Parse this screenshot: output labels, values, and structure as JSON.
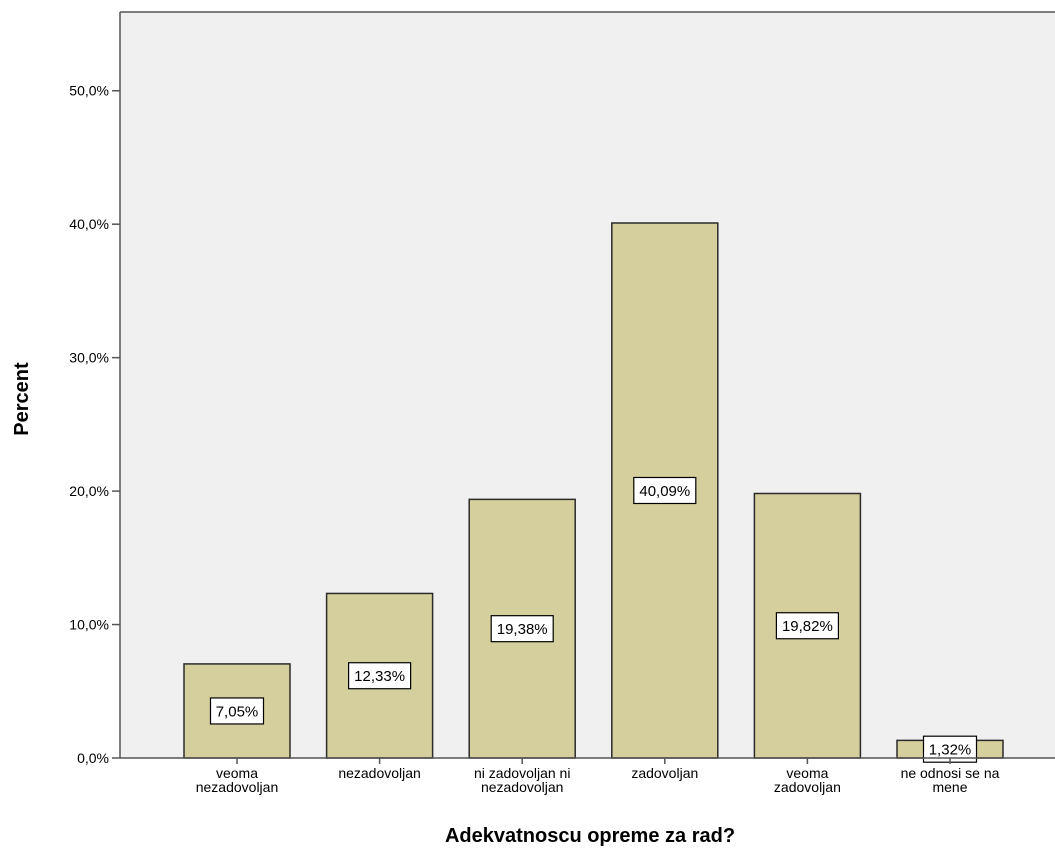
{
  "chart_data": {
    "type": "bar",
    "categories": [
      [
        "veoma",
        "nezadovoljan"
      ],
      [
        "nezadovoljan"
      ],
      [
        "ni zadovoljan ni",
        "nezadovoljan"
      ],
      [
        "zadovoljan"
      ],
      [
        "veoma",
        "zadovoljan"
      ],
      [
        "ne odnosi se na",
        "mene"
      ]
    ],
    "values": [
      7.05,
      12.33,
      19.38,
      40.09,
      19.82,
      1.32
    ],
    "data_labels": [
      "7,05%",
      "12,33%",
      "19,38%",
      "40,09%",
      "19,82%",
      "1,32%"
    ],
    "title": "",
    "xlabel": "Adekvatnoscu opreme za rad?",
    "ylabel": "Percent",
    "ylim": [
      0,
      55.9
    ],
    "yticks": [
      0,
      10,
      20,
      30,
      40,
      50
    ],
    "ytick_labels": [
      "0,0%",
      "10,0%",
      "20,0%",
      "30,0%",
      "40,0%",
      "50,0%"
    ],
    "grid": false,
    "colors": {
      "bar_fill": "#d4cf9c",
      "bar_stroke": "#2b2b2b",
      "plot_bg": "#f0f0f0",
      "axis": "#555555",
      "label_box": "#ffffff"
    }
  }
}
